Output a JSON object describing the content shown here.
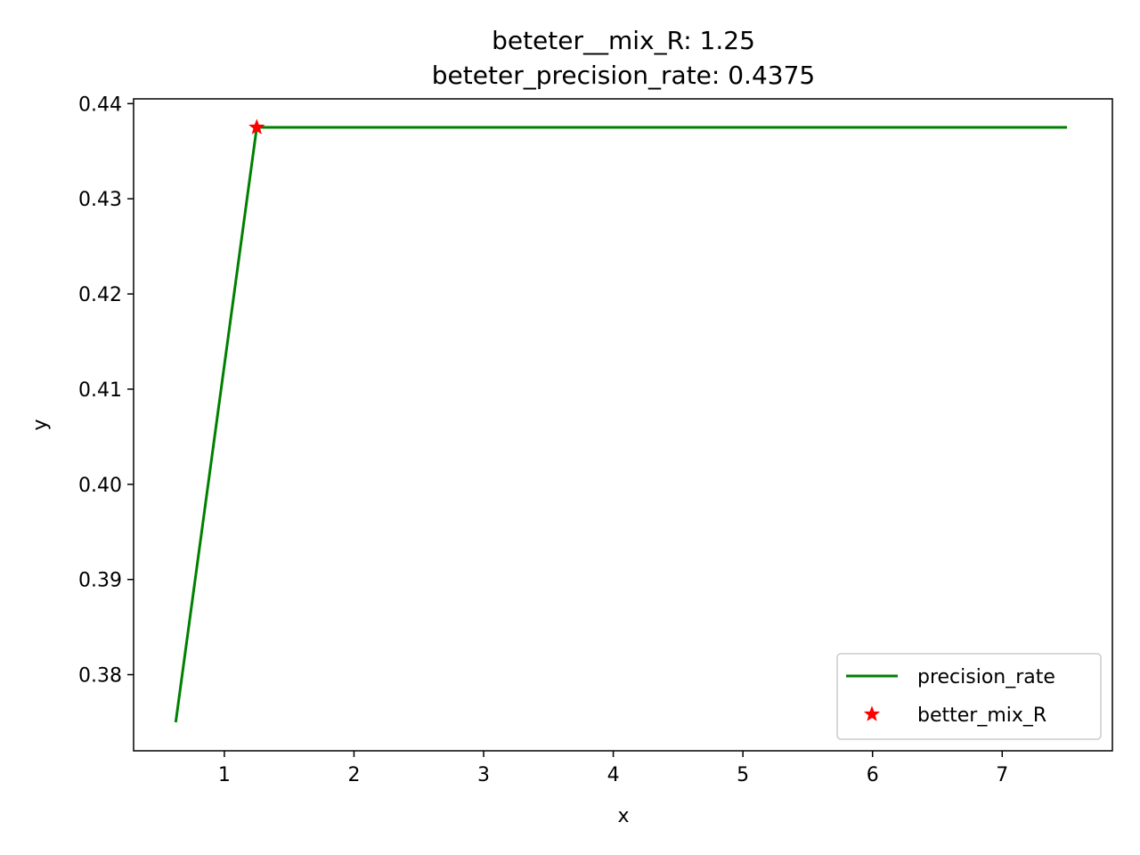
{
  "chart_data": {
    "type": "line",
    "title_lines": [
      "beteter__mix_R: 1.25",
      "beteter_precision_rate: 0.4375"
    ],
    "xlabel": "x",
    "ylabel": "y",
    "xlim": [
      0.3,
      7.85
    ],
    "ylim": [
      0.372,
      0.4405
    ],
    "xticks": [
      1,
      2,
      3,
      4,
      5,
      6,
      7
    ],
    "yticks": [
      0.38,
      0.39,
      0.4,
      0.41,
      0.42,
      0.43,
      0.44
    ],
    "ytick_labels": [
      "0.38",
      "0.39",
      "0.40",
      "0.41",
      "0.42",
      "0.43",
      "0.44"
    ],
    "grid": false,
    "legend_position": "bottom-right",
    "series": [
      {
        "name": "precision_rate",
        "kind": "line",
        "color": "#008000",
        "x": [
          0.625,
          1.25,
          1.875,
          2.5,
          3.125,
          3.75,
          4.375,
          5.0,
          5.625,
          6.25,
          6.875,
          7.5
        ],
        "y": [
          0.375,
          0.4375,
          0.4375,
          0.4375,
          0.4375,
          0.4375,
          0.4375,
          0.4375,
          0.4375,
          0.4375,
          0.4375,
          0.4375
        ]
      },
      {
        "name": "better_mix_R",
        "kind": "marker",
        "marker": "star",
        "color": "#ff0000",
        "x": [
          1.25
        ],
        "y": [
          0.4375
        ]
      }
    ]
  }
}
